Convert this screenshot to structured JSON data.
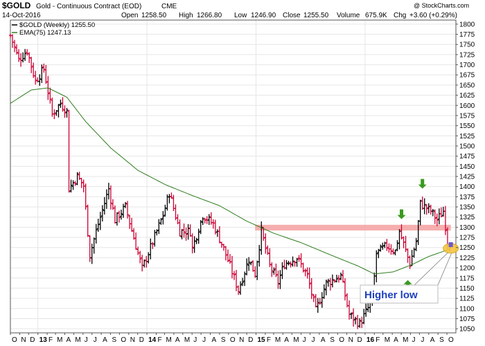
{
  "header": {
    "symbol": "$GOLD",
    "description": "Gold - Continuous Contract (EOD)",
    "exchange": "CME",
    "watermark": "@ StockCharts.com",
    "date": "14-Oct-2016",
    "open_label": "Open",
    "open": "1258.50",
    "high_label": "High",
    "high": "1266.80",
    "low_label": "Low",
    "low": "1246.90",
    "close_label": "Close",
    "close": "1255.50",
    "volume_label": "Volume",
    "volume": "675.9K",
    "chg_label": "Chg",
    "chg": "+3.60 (+0.29%)"
  },
  "legend": {
    "price_entry": "$GOLD (Weekly) 1255.50",
    "ema_entry": "EMA(75) 1247.13"
  },
  "annotation": {
    "text": "Higher low"
  },
  "colors": {
    "up": "#000000",
    "down": "#cc0033",
    "ema": "#2e7d1e",
    "resistance_band": "#f4a0a0",
    "arrow": "#3a9a1e",
    "highlight": "#f5c542",
    "annotation_text": "#1f3fbf"
  },
  "chart_data": {
    "type": "line",
    "title": "$GOLD Gold - Continuous Contract (EOD) CME",
    "ylim": [
      1040,
      1810
    ],
    "y_ticks": [
      1050,
      1075,
      1100,
      1125,
      1150,
      1175,
      1200,
      1225,
      1250,
      1275,
      1300,
      1325,
      1350,
      1375,
      1400,
      1425,
      1450,
      1475,
      1500,
      1525,
      1550,
      1575,
      1600,
      1625,
      1650,
      1675,
      1700,
      1725,
      1750,
      1775,
      1800
    ],
    "x_ticks": [
      "O",
      "N",
      "D",
      "13",
      "F",
      "M",
      "A",
      "M",
      "J",
      "J",
      "A",
      "S",
      "O",
      "N",
      "D",
      "14",
      "F",
      "M",
      "A",
      "M",
      "J",
      "J",
      "A",
      "S",
      "O",
      "N",
      "D",
      "15",
      "F",
      "M",
      "A",
      "M",
      "J",
      "J",
      "A",
      "S",
      "O",
      "N",
      "D",
      "16",
      "F",
      "M",
      "A",
      "M",
      "J",
      "J",
      "A",
      "S",
      "O"
    ],
    "x_range": [
      "2012-10-01",
      "2016-10-31"
    ],
    "price_anchors": [
      [
        "2012-10-01",
        1772
      ],
      [
        "2012-10-29",
        1712
      ],
      [
        "2012-11-26",
        1735
      ],
      [
        "2012-12-24",
        1660
      ],
      [
        "2013-01-21",
        1690
      ],
      [
        "2013-02-18",
        1578
      ],
      [
        "2013-03-18",
        1605
      ],
      [
        "2013-04-08",
        1585
      ],
      [
        "2013-04-15",
        1395
      ],
      [
        "2013-05-13",
        1425
      ],
      [
        "2013-06-03",
        1402
      ],
      [
        "2013-06-24",
        1232
      ],
      [
        "2013-07-15",
        1290
      ],
      [
        "2013-08-26",
        1395
      ],
      [
        "2013-09-16",
        1318
      ],
      [
        "2013-10-21",
        1350
      ],
      [
        "2013-12-16",
        1198
      ],
      [
        "2014-01-13",
        1250
      ],
      [
        "2014-02-24",
        1330
      ],
      [
        "2014-03-17",
        1385
      ],
      [
        "2014-04-21",
        1290
      ],
      [
        "2014-05-26",
        1290
      ],
      [
        "2014-06-02",
        1248
      ],
      [
        "2014-07-07",
        1330
      ],
      [
        "2014-08-11",
        1308
      ],
      [
        "2014-09-08",
        1260
      ],
      [
        "2014-10-06",
        1205
      ],
      [
        "2014-11-03",
        1145
      ],
      [
        "2014-12-08",
        1222
      ],
      [
        "2014-12-29",
        1185
      ],
      [
        "2015-01-19",
        1290
      ],
      [
        "2015-02-16",
        1205
      ],
      [
        "2015-03-16",
        1165
      ],
      [
        "2015-04-06",
        1210
      ],
      [
        "2015-05-18",
        1225
      ],
      [
        "2015-06-22",
        1180
      ],
      [
        "2015-07-20",
        1095
      ],
      [
        "2015-08-24",
        1162
      ],
      [
        "2015-10-12",
        1180
      ],
      [
        "2015-11-09",
        1085
      ],
      [
        "2015-12-14",
        1062
      ],
      [
        "2016-01-25",
        1120
      ],
      [
        "2016-02-08",
        1235
      ],
      [
        "2016-03-14",
        1255
      ],
      [
        "2016-04-11",
        1240
      ],
      [
        "2016-04-25",
        1290
      ],
      [
        "2016-05-30",
        1210
      ],
      [
        "2016-06-20",
        1265
      ],
      [
        "2016-07-04",
        1358
      ],
      [
        "2016-08-08",
        1340
      ],
      [
        "2016-08-29",
        1318
      ],
      [
        "2016-09-19",
        1340
      ],
      [
        "2016-10-03",
        1265
      ],
      [
        "2016-10-14",
        1255.5
      ]
    ],
    "ema_anchors": [
      [
        "2012-10-01",
        1605
      ],
      [
        "2012-12-10",
        1638
      ],
      [
        "2013-02-04",
        1643
      ],
      [
        "2013-04-08",
        1620
      ],
      [
        "2013-06-10",
        1560
      ],
      [
        "2013-09-02",
        1495
      ],
      [
        "2013-12-02",
        1440
      ],
      [
        "2014-03-03",
        1405
      ],
      [
        "2014-06-02",
        1378
      ],
      [
        "2014-09-01",
        1353
      ],
      [
        "2014-12-01",
        1315
      ],
      [
        "2015-03-02",
        1285
      ],
      [
        "2015-06-01",
        1262
      ],
      [
        "2015-09-07",
        1232
      ],
      [
        "2015-12-07",
        1205
      ],
      [
        "2016-02-01",
        1185
      ],
      [
        "2016-04-04",
        1190
      ],
      [
        "2016-06-06",
        1208
      ],
      [
        "2016-08-01",
        1228
      ],
      [
        "2016-10-14",
        1247.13
      ]
    ],
    "resistance_band": {
      "start": "2014-12-29",
      "end": "2016-10-14",
      "low": 1292,
      "high": 1306
    },
    "arrows": [
      {
        "date": "2016-05-02",
        "price": 1320,
        "direction": "down"
      },
      {
        "date": "2016-07-11",
        "price": 1395,
        "direction": "down"
      },
      {
        "date": "2016-05-23",
        "price": 1170,
        "direction": "up"
      }
    ],
    "highlight_point": {
      "date": "2016-10-14",
      "price": 1248
    }
  }
}
